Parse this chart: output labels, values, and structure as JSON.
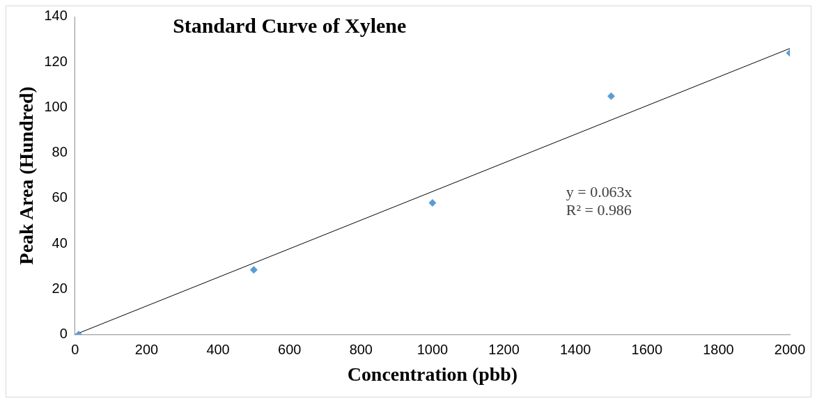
{
  "chart_data": {
    "type": "scatter",
    "title": "Standard Curve of Xylene",
    "xlabel": "Concentration (pbb)",
    "ylabel": "Peak Area (Hundred)",
    "annotations": [
      "y = 0.063x",
      "R² = 0.986"
    ],
    "series": [
      {
        "type": "scatter",
        "color": "#5b9bd5",
        "x": [
          10,
          500,
          1000,
          1500,
          2000
        ],
        "values": [
          0,
          28.5,
          58,
          105,
          124
        ],
        "marker": "diamond"
      },
      {
        "type": "line",
        "color": "#000000",
        "x": [
          0,
          2000
        ],
        "values": [
          0,
          126
        ],
        "marker": "none",
        "line_style": "solid"
      }
    ],
    "xlim": [
      0,
      2000
    ],
    "xticks": [
      0,
      200,
      400,
      600,
      800,
      1000,
      1200,
      1400,
      1600,
      1800,
      2000
    ],
    "ylim": [
      0,
      140
    ],
    "yticks": [
      0,
      20,
      40,
      60,
      80,
      100,
      120,
      140
    ],
    "grid": false,
    "legend": false
  }
}
